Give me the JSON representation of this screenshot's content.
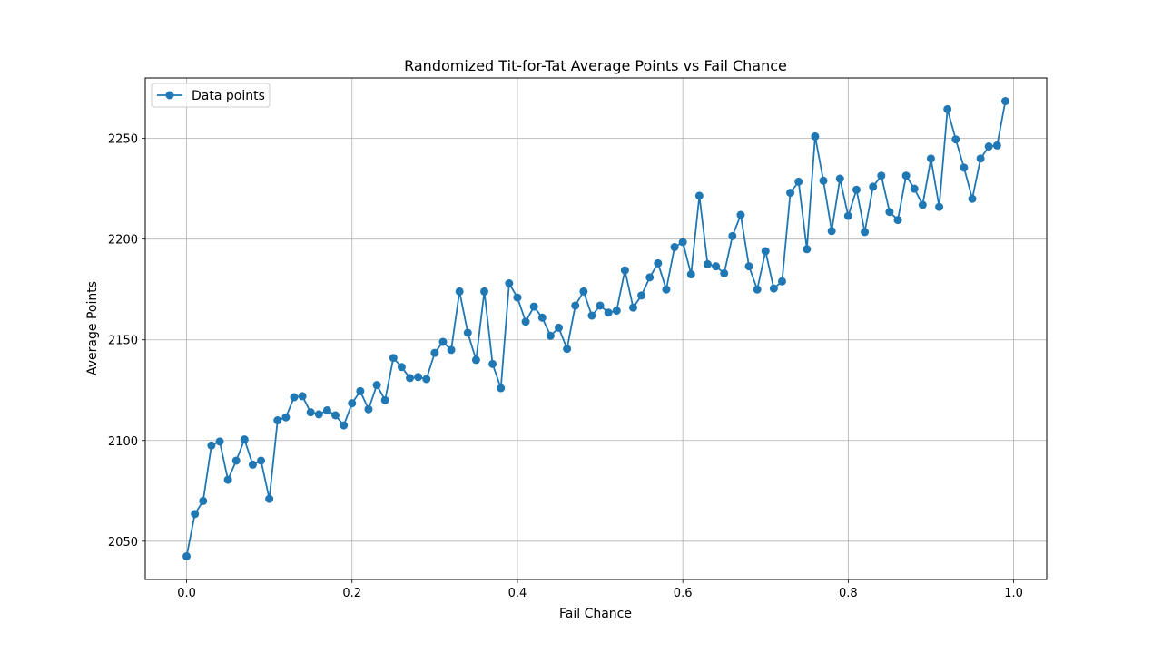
{
  "chart_data": {
    "type": "line",
    "title": "Randomized Tit-for-Tat Average Points vs Fail Chance",
    "xlabel": "Fail Chance",
    "ylabel": "Average Points",
    "xlim": [
      -0.05,
      1.04
    ],
    "ylim": [
      2031,
      2280
    ],
    "xticks": [
      "0.0",
      "0.2",
      "0.4",
      "0.6",
      "0.8",
      "1.0"
    ],
    "xtick_values": [
      0.0,
      0.2,
      0.4,
      0.6,
      0.8,
      1.0
    ],
    "yticks": [
      "2050",
      "2100",
      "2150",
      "2200",
      "2250"
    ],
    "ytick_values": [
      2050,
      2100,
      2150,
      2200,
      2250
    ],
    "grid": true,
    "legend_position": "top-left",
    "series": [
      {
        "name": "Data points",
        "color": "#1f77b4",
        "marker": "circle",
        "x": [
          0.0,
          0.01,
          0.02,
          0.03,
          0.04,
          0.05,
          0.06,
          0.07,
          0.08,
          0.09,
          0.1,
          0.11,
          0.12,
          0.13,
          0.14,
          0.15,
          0.16,
          0.17,
          0.18,
          0.19,
          0.2,
          0.21,
          0.22,
          0.23,
          0.24,
          0.25,
          0.26,
          0.27,
          0.28,
          0.29,
          0.3,
          0.31,
          0.32,
          0.33,
          0.34,
          0.35,
          0.36,
          0.37,
          0.38,
          0.39,
          0.4,
          0.41,
          0.42,
          0.43,
          0.44,
          0.45,
          0.46,
          0.47,
          0.48,
          0.49,
          0.5,
          0.51,
          0.52,
          0.53,
          0.54,
          0.55,
          0.56,
          0.57,
          0.58,
          0.59,
          0.6,
          0.61,
          0.62,
          0.63,
          0.64,
          0.65,
          0.66,
          0.67,
          0.68,
          0.69,
          0.7,
          0.71,
          0.72,
          0.73,
          0.74,
          0.75,
          0.76,
          0.77,
          0.78,
          0.79,
          0.8,
          0.81,
          0.82,
          0.83,
          0.84,
          0.85,
          0.86,
          0.87,
          0.88,
          0.89,
          0.9,
          0.91,
          0.92,
          0.93,
          0.94,
          0.95,
          0.96,
          0.97,
          0.98,
          0.99
        ],
        "values": [
          2042.5,
          2063.5,
          2070.0,
          2097.5,
          2099.5,
          2080.5,
          2090.0,
          2100.5,
          2088.0,
          2090.0,
          2071.0,
          2110.0,
          2111.5,
          2121.5,
          2122.0,
          2114.0,
          2113.0,
          2115.0,
          2112.5,
          2107.5,
          2118.5,
          2124.5,
          2115.5,
          2127.5,
          2120.0,
          2141.0,
          2136.5,
          2131.0,
          2131.5,
          2130.5,
          2143.5,
          2149.0,
          2145.0,
          2174.0,
          2153.5,
          2140.0,
          2174.0,
          2138.0,
          2126.0,
          2178.0,
          2171.0,
          2159.0,
          2166.5,
          2161.0,
          2152.0,
          2156.0,
          2145.5,
          2167.0,
          2174.0,
          2162.0,
          2167.0,
          2163.5,
          2164.5,
          2184.5,
          2166.0,
          2172.0,
          2181.0,
          2188.0,
          2175.0,
          2196.0,
          2198.5,
          2182.5,
          2221.5,
          2187.5,
          2186.5,
          2183.0,
          2201.5,
          2212.0,
          2186.5,
          2175.0,
          2194.0,
          2175.5,
          2179.0,
          2223.0,
          2228.5,
          2195.0,
          2251.0,
          2229.0,
          2204.0,
          2230.0,
          2211.5,
          2224.5,
          2203.5,
          2226.0,
          2231.5,
          2213.5,
          2209.5,
          2231.5,
          2225.0,
          2217.0,
          2240.0,
          2216.0,
          2264.5,
          2249.5,
          2235.5,
          2220.0,
          2240.0,
          2246.0,
          2246.5,
          2268.5
        ]
      }
    ]
  }
}
